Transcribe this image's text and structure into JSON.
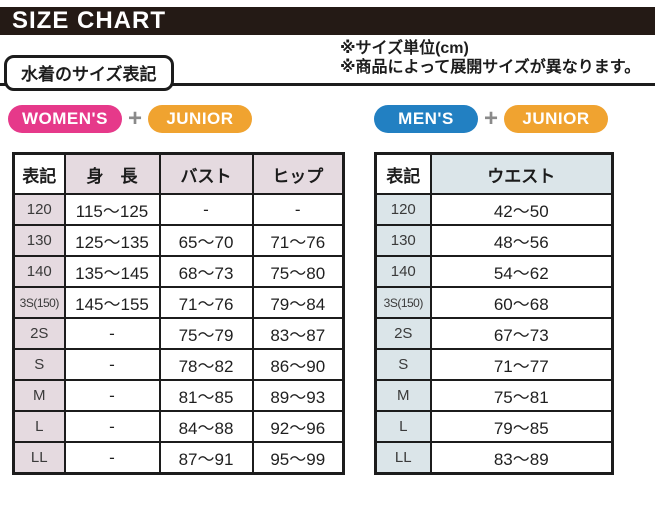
{
  "title": "SIZE CHART",
  "section_label": "水着のサイズ表記",
  "notes": {
    "line1": "※サイズ単位(cm)",
    "line2": "※商品によって展開サイズが異なります。"
  },
  "badges": {
    "womens": "WOMEN'S",
    "mens": "MEN'S",
    "junior": "JUNIOR",
    "plus": "+"
  },
  "women_table": {
    "headers": [
      "表記",
      "身　長",
      "バスト",
      "ヒップ"
    ],
    "rows": [
      [
        "120",
        "115～125",
        "-",
        "-"
      ],
      [
        "130",
        "125～135",
        "65～70",
        "71～76"
      ],
      [
        "140",
        "135～145",
        "68～73",
        "75～80"
      ],
      [
        "3S(150)",
        "145～155",
        "71～76",
        "79～84"
      ],
      [
        "2S",
        "-",
        "75～79",
        "83～87"
      ],
      [
        "S",
        "-",
        "78～82",
        "86～90"
      ],
      [
        "M",
        "-",
        "81～85",
        "89～93"
      ],
      [
        "L",
        "-",
        "84～88",
        "92～96"
      ],
      [
        "LL",
        "-",
        "87～91",
        "95～99"
      ]
    ]
  },
  "men_table": {
    "headers": [
      "表記",
      "ウエスト"
    ],
    "rows": [
      [
        "120",
        "42～50"
      ],
      [
        "130",
        "48～56"
      ],
      [
        "140",
        "54～62"
      ],
      [
        "3S(150)",
        "60～68"
      ],
      [
        "2S",
        "67～73"
      ],
      [
        "S",
        "71～77"
      ],
      [
        "M",
        "75～81"
      ],
      [
        "L",
        "79～85"
      ],
      [
        "LL",
        "83～89"
      ]
    ]
  },
  "colors": {
    "title_bar": "#241a15",
    "womens_badge": "#e6398a",
    "mens_badge": "#2280c2",
    "junior_badge": "#f0a330",
    "plus": "#8a8a8a",
    "women_header_bg": "#e5dae0",
    "men_header_bg": "#dbe5e9",
    "table_border": "#1c1c1c"
  }
}
